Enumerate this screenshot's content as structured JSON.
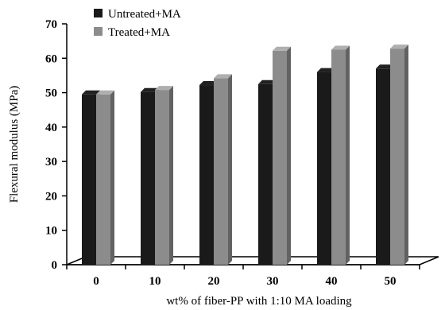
{
  "chart_data": {
    "type": "bar",
    "title": "",
    "xlabel": "wt% of fiber-PP with 1:10 MA loading",
    "ylabel": "Flexural modulus (MPa)",
    "categories": [
      "0",
      "10",
      "20",
      "30",
      "40",
      "50"
    ],
    "ylim": [
      0,
      70
    ],
    "yticks": [
      "0",
      "10",
      "20",
      "30",
      "40",
      "50",
      "60",
      "70"
    ],
    "grid": false,
    "legend_position": "top-left",
    "series": [
      {
        "name": "Untreated+MA",
        "values": [
          49.5,
          50.2,
          52.2,
          52.5,
          56.0,
          57.0
        ],
        "color": "#1a1a1a"
      },
      {
        "name": "Treated+MA",
        "values": [
          49.5,
          50.8,
          54.2,
          62.2,
          62.5,
          62.8
        ],
        "color": "#8c8c8c"
      }
    ]
  }
}
